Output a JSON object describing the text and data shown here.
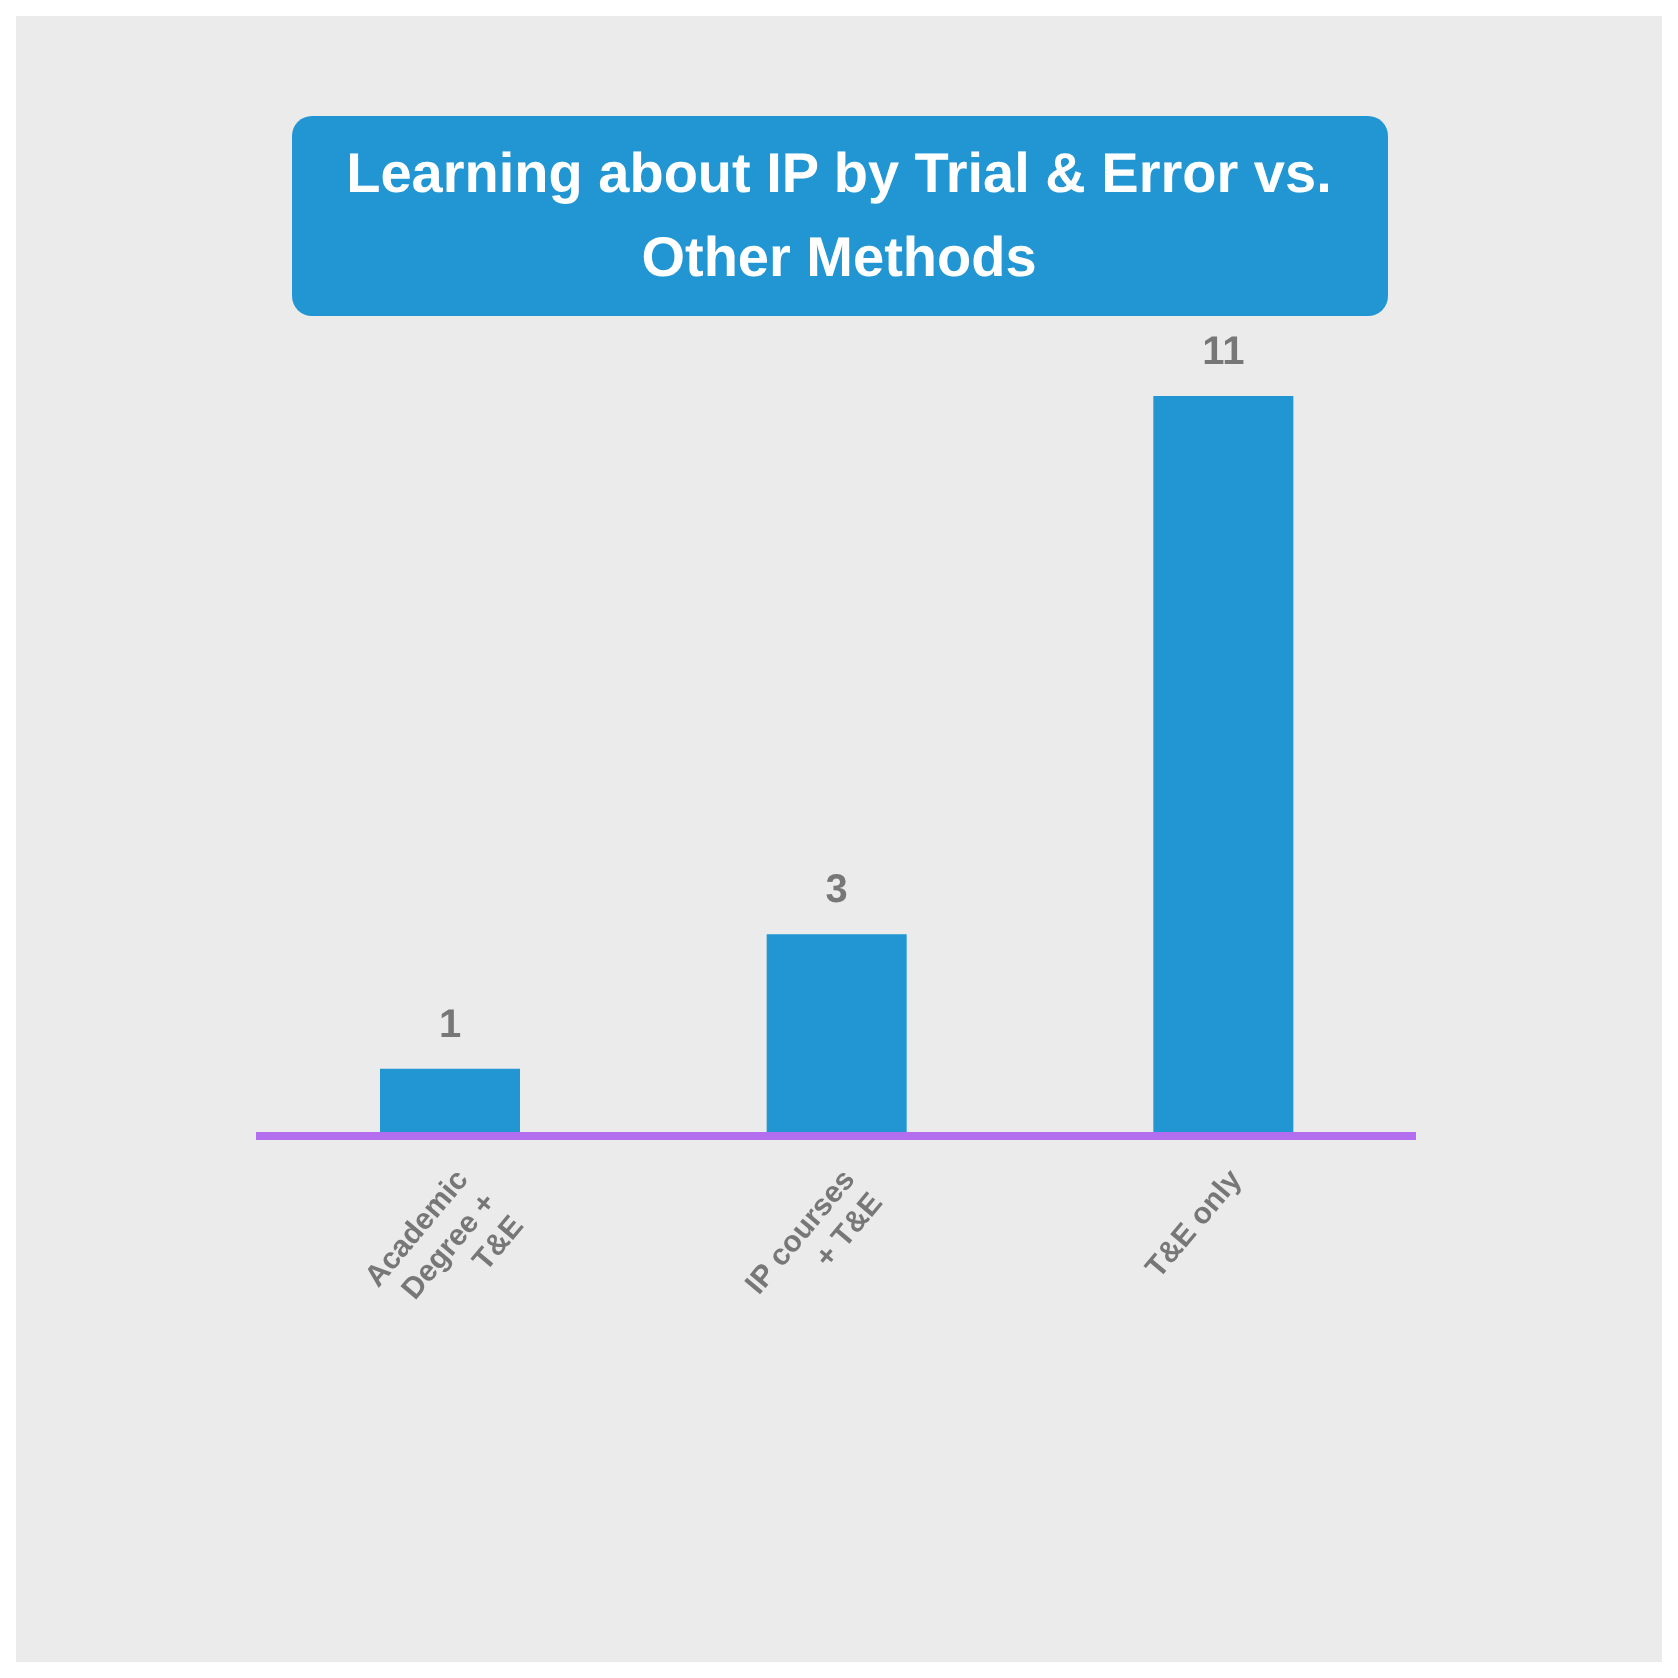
{
  "chart_data": {
    "type": "bar",
    "title": "Learning about IP by Trial & Error vs. Other Methods",
    "categories": [
      "Academic Degree + T&E",
      "IP courses + T&E",
      "T&E only"
    ],
    "values": [
      1,
      3,
      11
    ],
    "color": "#2196d3",
    "data_labels": true
  }
}
